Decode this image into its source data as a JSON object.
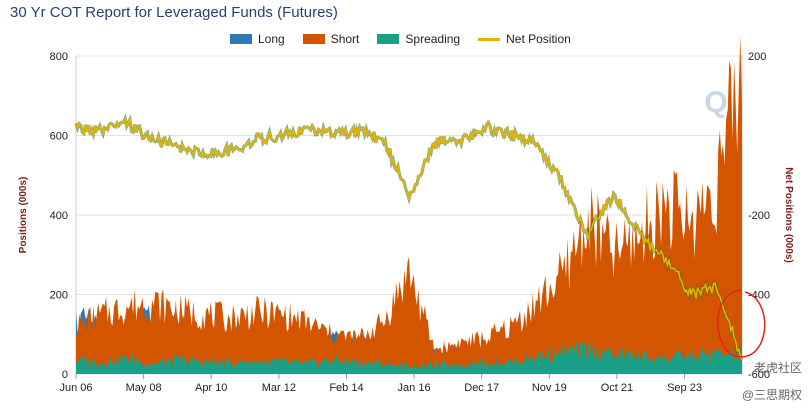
{
  "title": "30 Yr COT Report for Leveraged Funds (Futures)",
  "legend": [
    {
      "label": "Long",
      "color": "#2a78b4",
      "kind": "swatch"
    },
    {
      "label": "Short",
      "color": "#d45500",
      "kind": "swatch"
    },
    {
      "label": "Spreading",
      "color": "#1aa086",
      "kind": "swatch"
    },
    {
      "label": "Net Position",
      "color": "#e6b400",
      "kind": "line"
    }
  ],
  "watermark": {
    "logo": "Q",
    "site1": "老虎社区",
    "site2": "@三思期权"
  },
  "chart_data": {
    "type": "area",
    "title": "30 Yr COT Report for Leveraged Funds (Futures)",
    "x_ticks": [
      "Jun 06",
      "May 08",
      "Apr 10",
      "Mar 12",
      "Feb 14",
      "Jan 16",
      "Dec 17",
      "Nov 19",
      "Oct 21",
      "Sep 23"
    ],
    "left_axis": {
      "label": "Positions (000s)",
      "ticks": [
        0,
        200,
        400,
        600,
        800
      ],
      "range": [
        0,
        800
      ]
    },
    "right_axis": {
      "label": "Net Positions (000s)",
      "ticks": [
        -600,
        -400,
        -200,
        200
      ],
      "range": [
        -600,
        200
      ]
    },
    "series": [
      {
        "name": "Long",
        "color": "#2a78b4",
        "values": [
          140,
          125,
          110,
          150,
          130,
          100,
          95,
          110,
          105,
          95,
          90,
          80,
          75,
          60,
          55,
          60,
          50,
          45,
          40,
          45,
          40,
          35,
          30,
          40,
          30,
          35,
          30
        ]
      },
      {
        "name": "Short",
        "color": "#d45500",
        "values": [
          120,
          150,
          170,
          180,
          160,
          150,
          140,
          155,
          150,
          130,
          100,
          90,
          130,
          260,
          60,
          80,
          90,
          120,
          180,
          250,
          390,
          300,
          350,
          430,
          380,
          480,
          760
        ]
      },
      {
        "name": "Spreading",
        "color": "#1aa086",
        "values": [
          35,
          30,
          40,
          25,
          35,
          30,
          28,
          32,
          30,
          25,
          35,
          30,
          25,
          20,
          22,
          25,
          30,
          30,
          45,
          55,
          60,
          50,
          45,
          40,
          45,
          50,
          45
        ]
      },
      {
        "name": "Net Position",
        "color": "#e6b400",
        "values": [
          20,
          10,
          30,
          -10,
          -30,
          -45,
          -40,
          -10,
          0,
          15,
          5,
          10,
          -10,
          -150,
          -20,
          -10,
          20,
          0,
          -20,
          -120,
          -250,
          -150,
          -250,
          -310,
          -400,
          -380,
          -560
        ]
      }
    ]
  }
}
